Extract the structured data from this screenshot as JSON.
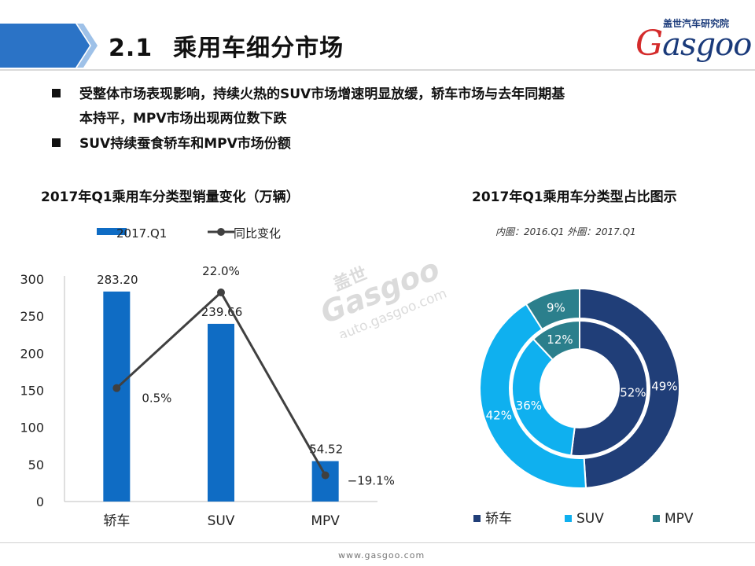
{
  "header": {
    "section_number": "2.1",
    "title": "乘用车细分市场"
  },
  "logo": {
    "chinese": "盖世汽车研究院",
    "brand": "Gasgoo"
  },
  "watermark": {
    "chinese": "盖世",
    "brand": "Gasgoo",
    "url": "auto.gasgoo.com"
  },
  "bullets": [
    {
      "line1": "受整体市场表现影响，持续火热的SUV市场增速明显放缓，轿车市场与去年同期基",
      "line2": "本持平，MPV市场出现两位数下跌"
    },
    {
      "line1": "SUV持续蚕食轿车和MPV市场份额",
      "line2": ""
    }
  ],
  "chart_data": [
    {
      "type": "bar",
      "title": "2017年Q1乘用车分类型销量变化（万辆）",
      "categories": [
        "轿车",
        "SUV",
        "MPV"
      ],
      "series": [
        {
          "name": "2017.Q1",
          "type": "bar",
          "values": [
            283.2,
            239.66,
            54.52
          ],
          "labels": [
            "283.20",
            "239.66",
            "54.52"
          ],
          "color": "#0f6cc4"
        },
        {
          "name": "同比变化",
          "type": "line",
          "values": [
            0.5,
            22.0,
            -19.1
          ],
          "labels": [
            "0.5%",
            "22.0%",
            "−19.1%"
          ],
          "color": "#404040"
        }
      ],
      "yticks": [
        "0",
        "50",
        "100",
        "150",
        "200",
        "250",
        "300"
      ],
      "ylim": [
        0,
        300
      ],
      "line_range": [
        -25,
        25
      ],
      "legend": "top-left",
      "grid": false
    },
    {
      "type": "pie",
      "title": "2017年Q1乘用车分类型占比图示",
      "subtitle": "内圈：2016.Q1    外圈：2017.Q1",
      "categories": [
        "轿车",
        "SUV",
        "MPV"
      ],
      "colors": [
        "#203e78",
        "#0fb0ef",
        "#2b7f8c"
      ],
      "rings": [
        {
          "name": "2016.Q1",
          "position": "inner",
          "values": [
            52,
            36,
            12
          ],
          "labels": [
            "52%",
            "36%",
            "12%"
          ]
        },
        {
          "name": "2017.Q1",
          "position": "outer",
          "values": [
            49,
            42,
            9
          ],
          "labels": [
            "49%",
            "42%",
            "9%"
          ]
        }
      ],
      "legend": "bottom"
    }
  ],
  "footer": {
    "url": "www.gasgoo.com"
  }
}
